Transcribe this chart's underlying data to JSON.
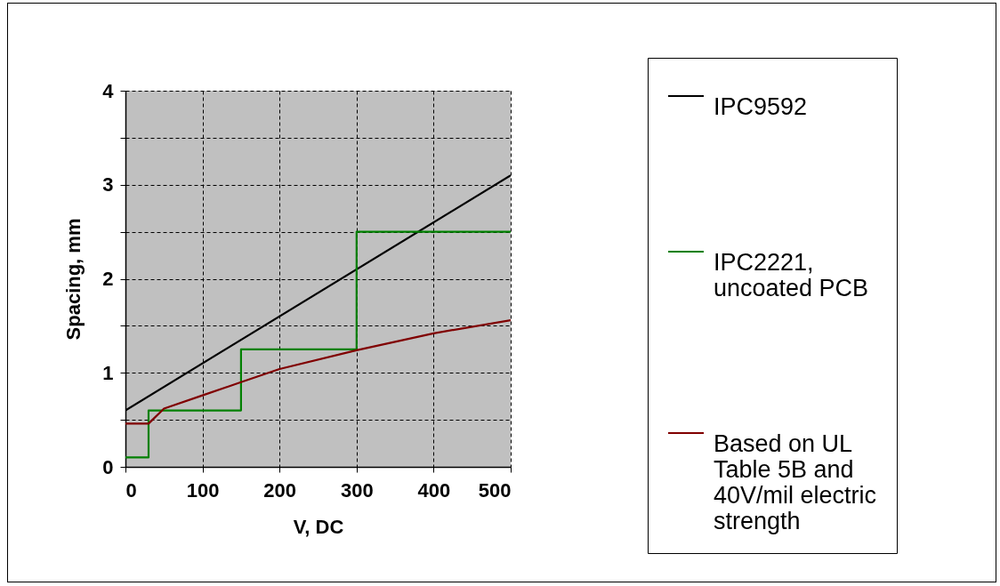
{
  "chart_data": {
    "type": "line",
    "xlabel": "V, DC",
    "ylabel": "Spacing, mm",
    "xlim": [
      0,
      500
    ],
    "ylim": [
      0,
      4
    ],
    "xticks": [
      0,
      100,
      200,
      300,
      400,
      500
    ],
    "yticks": [
      0,
      {
        "value": 0.5,
        "label": null
      },
      1,
      {
        "value": 1.5,
        "label": null
      },
      2,
      {
        "value": 2.5,
        "label": null
      },
      3,
      {
        "value": 3.5,
        "label": null
      },
      4
    ],
    "grid": true,
    "legend": "right",
    "marker": "none",
    "line_style": "solid",
    "series": [
      {
        "name": "IPC9592",
        "color": "#000000",
        "x": [
          0,
          500
        ],
        "values": [
          0.6,
          3.1
        ]
      },
      {
        "name": "IPC2221, uncoated PCB",
        "type": "step",
        "color": "#008000",
        "x": [
          0,
          30,
          150,
          300,
          500
        ],
        "values": [
          0.1,
          0.6,
          1.25,
          2.5,
          2.5
        ]
      },
      {
        "name": "Based on UL Table 5B and 40V/mil electric strength",
        "color": "#800000",
        "x": [
          0,
          30,
          50,
          100,
          150,
          200,
          300,
          400,
          500
        ],
        "values": [
          0.46,
          0.46,
          0.62,
          0.76,
          0.9,
          1.04,
          1.24,
          1.42,
          1.56
        ]
      }
    ]
  }
}
